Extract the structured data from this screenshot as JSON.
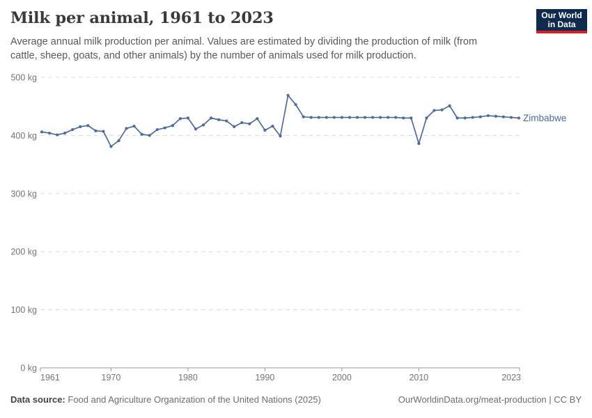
{
  "header": {
    "title": "Milk per animal, 1961 to 2023",
    "subtitle_line1": "Average annual milk production per animal. Values are estimated by dividing the production of milk (from",
    "subtitle_line2": "cattle, sheep, goats, and other animals) by the number of animals used for milk production."
  },
  "logo": {
    "line1": "Our World",
    "line2": "in Data"
  },
  "footer": {
    "source_label": "Data source:",
    "source_text": "Food and Agriculture Organization of the United Nations (2025)",
    "credit": "OurWorldinData.org/meat-production | CC BY"
  },
  "colors": {
    "line": "#4c6a9c",
    "grid": "#dcdcdc",
    "axis": "#999999",
    "axis_text": "#757575",
    "logo_navy": "#102a4e",
    "logo_red": "#cf2328"
  },
  "chart_data": {
    "type": "line",
    "title": "Milk per animal, 1961 to 2023",
    "unit": "kg",
    "xlabel": "",
    "ylabel": "",
    "ylim": [
      0,
      500
    ],
    "yticks": [
      0,
      100,
      200,
      300,
      400,
      500
    ],
    "ytick_suffix": " kg",
    "xticks": [
      1961,
      1970,
      1980,
      1990,
      2000,
      2010,
      2023
    ],
    "grid": "horizontal-dashed",
    "legend": "end-of-line-label",
    "x": [
      1961,
      1962,
      1963,
      1964,
      1965,
      1966,
      1967,
      1968,
      1969,
      1970,
      1971,
      1972,
      1973,
      1974,
      1975,
      1976,
      1977,
      1978,
      1979,
      1980,
      1981,
      1982,
      1983,
      1984,
      1985,
      1986,
      1987,
      1988,
      1989,
      1990,
      1991,
      1992,
      1993,
      1994,
      1995,
      1996,
      1997,
      1998,
      1999,
      2000,
      2001,
      2002,
      2003,
      2004,
      2005,
      2006,
      2007,
      2008,
      2009,
      2010,
      2011,
      2012,
      2013,
      2014,
      2015,
      2016,
      2017,
      2018,
      2019,
      2020,
      2021,
      2022,
      2023
    ],
    "series": [
      {
        "name": "Zimbabwe",
        "color": "#4c6a9c",
        "values": [
          406,
          404,
          401,
          404,
          410,
          415,
          417,
          408,
          407,
          381,
          391,
          412,
          416,
          402,
          400,
          410,
          413,
          417,
          429,
          430,
          411,
          418,
          430,
          427,
          425,
          415,
          422,
          420,
          429,
          409,
          416,
          399,
          469,
          453,
          432,
          431,
          431,
          431,
          431,
          431,
          431,
          431,
          431,
          431,
          431,
          431,
          431,
          430,
          430,
          386,
          430,
          443,
          444,
          451,
          430,
          430,
          431,
          432,
          434,
          433,
          432,
          431,
          430
        ]
      }
    ]
  }
}
